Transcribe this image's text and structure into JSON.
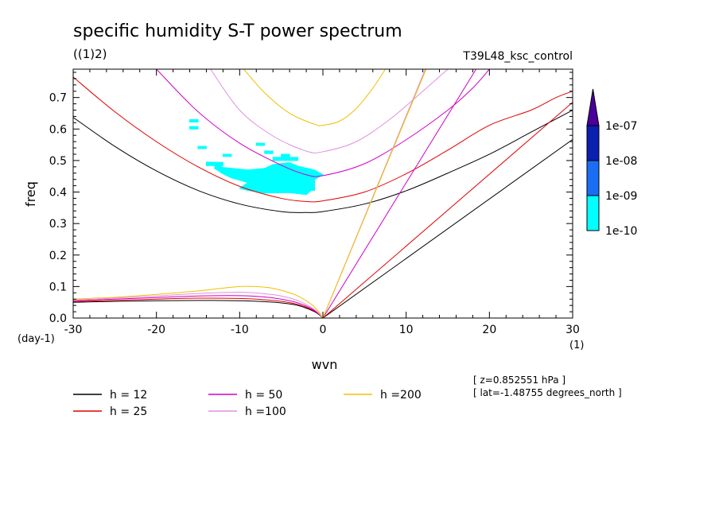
{
  "chart_data": {
    "type": "line",
    "title": "specific humidity S-T power spectrum",
    "subtitle_left": "((1)2)",
    "subtitle_right": "T39L48_ksc_control",
    "xlabel": "wvn",
    "ylabel": "freq",
    "x_unit": "(1)",
    "y_unit": "(day-1)",
    "xlim": [
      -30,
      30
    ],
    "ylim": [
      0,
      0.79
    ],
    "xticks": [
      -30,
      -20,
      -10,
      0,
      10,
      20,
      30
    ],
    "xtick_labels": [
      "-30",
      "-20",
      "-10",
      "0",
      "10",
      "20",
      "30"
    ],
    "yticks": [
      0,
      0.1,
      0.2,
      0.3,
      0.4,
      0.5,
      0.6,
      0.7
    ],
    "ytick_labels": [
      "0.0",
      "0.1",
      "0.2",
      "0.3",
      "0.4",
      "0.5",
      "0.6",
      "0.7"
    ],
    "info_lines": [
      "[ z=0.852551 hPa ]",
      "[ lat=-1.48755 degrees_north ]"
    ],
    "colorbar": {
      "labels": [
        "1e-07",
        "1e-08",
        "1e-09",
        "1e-10"
      ],
      "colors": [
        "#4b0099",
        "#0a20b0",
        "#1a6ef5",
        "#00ffff"
      ]
    },
    "series": [
      {
        "name": "h = 12",
        "label": "h = 12",
        "color": "#000000",
        "ig": [
          [
            -30,
            0.637
          ],
          [
            -25,
            0.545
          ],
          [
            -20,
            0.467
          ],
          [
            -15,
            0.405
          ],
          [
            -10,
            0.362
          ],
          [
            -5,
            0.338
          ],
          [
            -2,
            0.335
          ],
          [
            0,
            0.338
          ],
          [
            5,
            0.362
          ],
          [
            10,
            0.404
          ],
          [
            15,
            0.46
          ],
          [
            20,
            0.52
          ],
          [
            25,
            0.59
          ],
          [
            30,
            0.66
          ]
        ],
        "er": [
          [
            -30,
            0.05
          ],
          [
            -25,
            0.053
          ],
          [
            -20,
            0.055
          ],
          [
            -15,
            0.056
          ],
          [
            -10,
            0.055
          ],
          [
            -7,
            0.052
          ],
          [
            -5,
            0.048
          ],
          [
            -3,
            0.04
          ],
          [
            -1,
            0.02
          ],
          [
            0,
            0.0
          ]
        ],
        "kelvin": [
          [
            0,
            0
          ],
          [
            30,
            0.567
          ]
        ]
      },
      {
        "name": "h = 25",
        "label": "h = 25",
        "color": "#e00000",
        "ig": [
          [
            -30,
            0.765
          ],
          [
            -25,
            0.655
          ],
          [
            -20,
            0.56
          ],
          [
            -15,
            0.48
          ],
          [
            -10,
            0.418
          ],
          [
            -5,
            0.38
          ],
          [
            -2,
            0.37
          ],
          [
            0,
            0.372
          ],
          [
            5,
            0.4
          ],
          [
            10,
            0.458
          ],
          [
            15,
            0.533
          ],
          [
            20,
            0.612
          ],
          [
            25,
            0.66
          ],
          [
            28,
            0.7
          ],
          [
            30,
            0.72
          ]
        ],
        "er": [
          [
            -30,
            0.052
          ],
          [
            -25,
            0.056
          ],
          [
            -20,
            0.06
          ],
          [
            -15,
            0.063
          ],
          [
            -10,
            0.062
          ],
          [
            -7,
            0.058
          ],
          [
            -5,
            0.053
          ],
          [
            -3,
            0.043
          ],
          [
            -1,
            0.022
          ],
          [
            0,
            0.0
          ]
        ],
        "kelvin": [
          [
            0,
            0
          ],
          [
            30,
            0.685
          ]
        ]
      },
      {
        "name": "h = 50",
        "label": "h = 50",
        "color": "#d000c8",
        "ig": [
          [
            -20,
            0.79
          ],
          [
            -15,
            0.655
          ],
          [
            -10,
            0.555
          ],
          [
            -5,
            0.485
          ],
          [
            -2,
            0.455
          ],
          [
            0,
            0.452
          ],
          [
            5,
            0.49
          ],
          [
            10,
            0.566
          ],
          [
            15,
            0.66
          ],
          [
            18,
            0.73
          ],
          [
            20,
            0.79
          ]
        ],
        "er": [
          [
            -30,
            0.055
          ],
          [
            -25,
            0.06
          ],
          [
            -20,
            0.065
          ],
          [
            -15,
            0.07
          ],
          [
            -10,
            0.071
          ],
          [
            -7,
            0.067
          ],
          [
            -5,
            0.06
          ],
          [
            -3,
            0.048
          ],
          [
            -1,
            0.024
          ],
          [
            0,
            0.0
          ]
        ],
        "kelvin": [
          [
            0,
            0
          ],
          [
            18.4,
            0.79
          ]
        ]
      },
      {
        "name": "h =100",
        "label": "h =100",
        "color": "#e090e0",
        "ig": [
          [
            -13.5,
            0.79
          ],
          [
            -10,
            0.66
          ],
          [
            -6,
            0.578
          ],
          [
            -2,
            0.53
          ],
          [
            0,
            0.528
          ],
          [
            4,
            0.56
          ],
          [
            8,
            0.63
          ],
          [
            12,
            0.72
          ],
          [
            15,
            0.79
          ]
        ],
        "er": [
          [
            -30,
            0.057
          ],
          [
            -25,
            0.063
          ],
          [
            -20,
            0.07
          ],
          [
            -15,
            0.078
          ],
          [
            -10,
            0.082
          ],
          [
            -7,
            0.077
          ],
          [
            -5,
            0.07
          ],
          [
            -3,
            0.055
          ],
          [
            -1,
            0.027
          ],
          [
            0,
            0.0
          ]
        ],
        "kelvin": [
          [
            0,
            0
          ],
          [
            12.3,
            0.79
          ]
        ]
      },
      {
        "name": "h =200",
        "label": "h =200",
        "color": "#f0c000",
        "ig": [
          [
            -9.5,
            0.79
          ],
          [
            -7,
            0.715
          ],
          [
            -4,
            0.65
          ],
          [
            -1,
            0.615
          ],
          [
            0,
            0.612
          ],
          [
            2,
            0.625
          ],
          [
            4,
            0.665
          ],
          [
            6,
            0.73
          ],
          [
            7.5,
            0.79
          ]
        ],
        "er": [
          [
            -30,
            0.06
          ],
          [
            -25,
            0.066
          ],
          [
            -20,
            0.075
          ],
          [
            -15,
            0.086
          ],
          [
            -10,
            0.1
          ],
          [
            -7,
            0.098
          ],
          [
            -5,
            0.088
          ],
          [
            -3,
            0.07
          ],
          [
            -1,
            0.035
          ],
          [
            0,
            0.0
          ]
        ],
        "kelvin": [
          [
            0,
            0
          ],
          [
            12.4,
            0.79
          ]
        ]
      }
    ],
    "shaded_regions": [
      {
        "level": "1e-10",
        "color": "#00ffff",
        "polygon": [
          [
            -13,
            0.493
          ],
          [
            -12,
            0.478
          ],
          [
            -9,
            0.47
          ],
          [
            -7,
            0.475
          ],
          [
            -6,
            0.487
          ],
          [
            -4,
            0.493
          ],
          [
            -3,
            0.482
          ],
          [
            -1,
            0.47
          ],
          [
            0,
            0.455
          ],
          [
            -1,
            0.44
          ],
          [
            -1,
            0.415
          ],
          [
            -2,
            0.392
          ],
          [
            -4,
            0.398
          ],
          [
            -7,
            0.397
          ],
          [
            -9,
            0.405
          ],
          [
            -10,
            0.412
          ],
          [
            -9,
            0.43
          ],
          [
            -11,
            0.445
          ],
          [
            -12,
            0.458
          ],
          [
            -13,
            0.475
          ]
        ]
      },
      {
        "level": "1e-10",
        "color": "#00ffff",
        "polygon": [
          [
            -14,
            0.495
          ],
          [
            -12,
            0.494
          ],
          [
            -12,
            0.484
          ],
          [
            -14,
            0.484
          ]
        ]
      },
      {
        "level": "1e-10",
        "color": "#00ffff",
        "polygon": [
          [
            -6,
            0.51
          ],
          [
            -3,
            0.51
          ],
          [
            -3,
            0.5
          ],
          [
            -6,
            0.5
          ]
        ]
      },
      {
        "level": "1e-10",
        "color": "#00ffff",
        "polygon": [
          [
            -8,
            0.555
          ],
          [
            -7,
            0.555
          ],
          [
            -7,
            0.548
          ],
          [
            -8,
            0.548
          ]
        ]
      },
      {
        "level": "1e-10",
        "color": "#00ffff",
        "polygon": [
          [
            -16,
            0.63
          ],
          [
            -15,
            0.63
          ],
          [
            -15,
            0.622
          ],
          [
            -16,
            0.622
          ]
        ]
      },
      {
        "level": "1e-10",
        "color": "#00ffff",
        "polygon": [
          [
            -3,
            0.42
          ],
          [
            -1,
            0.42
          ],
          [
            -1,
            0.405
          ],
          [
            -3,
            0.405
          ]
        ]
      },
      {
        "level": "1e-10",
        "color": "#00ffff",
        "polygon": [
          [
            -5,
            0.52
          ],
          [
            -4,
            0.52
          ],
          [
            -4,
            0.512
          ],
          [
            -5,
            0.512
          ]
        ]
      },
      {
        "level": "1e-10",
        "color": "#00ffff",
        "polygon": [
          [
            -15,
            0.545
          ],
          [
            -14,
            0.545
          ],
          [
            -14,
            0.538
          ],
          [
            -15,
            0.538
          ]
        ]
      },
      {
        "level": "1e-10",
        "color": "#00ffff",
        "polygon": [
          [
            -12,
            0.52
          ],
          [
            -11,
            0.52
          ],
          [
            -11,
            0.513
          ],
          [
            -12,
            0.513
          ]
        ]
      },
      {
        "level": "1e-10",
        "color": "#00ffff",
        "polygon": [
          [
            -16,
            0.608
          ],
          [
            -15,
            0.608
          ],
          [
            -15,
            0.6
          ],
          [
            -16,
            0.6
          ]
        ]
      },
      {
        "level": "1e-10",
        "color": "#00ffff",
        "polygon": [
          [
            -7,
            0.53
          ],
          [
            -6,
            0.53
          ],
          [
            -6,
            0.522
          ],
          [
            -7,
            0.522
          ]
        ]
      }
    ],
    "grid": false,
    "legend": "bottom"
  }
}
